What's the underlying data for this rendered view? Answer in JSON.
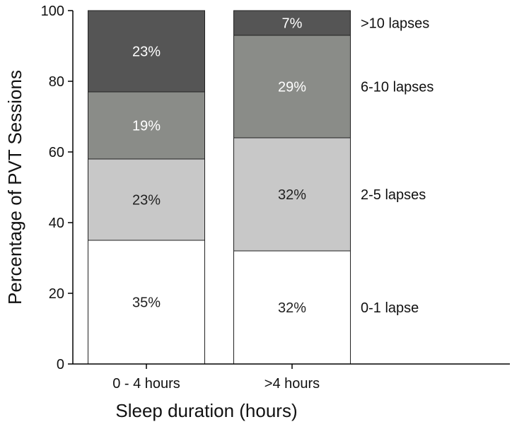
{
  "chart_data": {
    "type": "bar",
    "stacked": true,
    "title": "",
    "xlabel": "Sleep duration (hours)",
    "ylabel": "Percentage of PVT Sessions",
    "ylim": [
      0,
      100
    ],
    "yticks": [
      "0",
      "20",
      "40",
      "60",
      "80",
      "100"
    ],
    "grid": false,
    "categories": [
      "0 - 4 hours",
      ">4 hours"
    ],
    "series": [
      {
        "name": "0-1 lapse",
        "values": [
          35,
          32
        ],
        "labels": [
          "35%",
          "32%"
        ],
        "color": "#ffffff",
        "label_color": "#222222"
      },
      {
        "name": "2-5 lapses",
        "values": [
          23,
          32
        ],
        "labels": [
          "23%",
          "32%"
        ],
        "color": "#c8c8c8",
        "label_color": "#222222"
      },
      {
        "name": "6-10 lapses",
        "values": [
          19,
          29
        ],
        "labels": [
          "19%",
          "29%"
        ],
        "color": "#8a8c88",
        "label_color": "#ffffff"
      },
      {
        "name": ">10 lapses",
        "values": [
          23,
          7
        ],
        "labels": [
          "23%",
          "7%"
        ],
        "color": "#555555",
        "label_color": "#ffffff"
      }
    ]
  }
}
